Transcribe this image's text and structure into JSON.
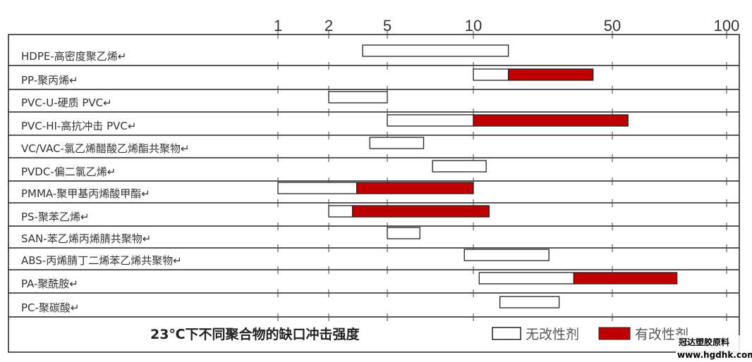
{
  "chart_data": {
    "type": "bar",
    "orientation": "horizontal",
    "stacked_ranges": true,
    "title": "23℃下不同聚合物的缺口冲击强度",
    "x_scale": "log (non-uniform spacing)",
    "x_ticks": [
      "1",
      "2",
      "5",
      "10",
      "50",
      "100"
    ],
    "xlim": [
      1,
      100
    ],
    "grid": "tick marks at each row boundary",
    "legend_position": "bottom",
    "legend": [
      {
        "name": "无改性剂",
        "color": "#ffffff"
      },
      {
        "name": "有改性剂",
        "color": "#c00000"
      }
    ],
    "categories": [
      "HDPE-高密度聚乙烯↵",
      "PP-聚丙烯↵",
      "PVC-U-硬质 PVC↵",
      "PVC-HI-高抗冲击 PVC↵",
      "VC/VAC-氯乙烯醋酸乙烯酯共聚物↵",
      "PVDC-偏二氯乙烯↵",
      "PMMA-聚甲基丙烯酸甲酯↵",
      "PS-聚苯乙烯↵",
      "SAN-苯乙烯丙烯腈共聚物↵",
      "ABS-丙烯腈丁二烯苯乙烯共聚物↵",
      "PA-聚酰胺↵",
      "PC-聚碳酸↵"
    ],
    "series": [
      {
        "name": "无改性剂",
        "ranges": [
          [
            3.4,
            15
          ],
          [
            10,
            15
          ],
          [
            2,
            5
          ],
          [
            5,
            10
          ],
          [
            3.8,
            6.7
          ],
          [
            7.2,
            11.6
          ],
          [
            1,
            3.1
          ],
          [
            2,
            2.9
          ],
          [
            5,
            6.5
          ],
          [
            9.3,
            24
          ],
          [
            10.7,
            32
          ],
          [
            13.6,
            27
          ]
        ]
      },
      {
        "name": "有改性剂",
        "ranges": [
          null,
          [
            15,
            40
          ],
          null,
          [
            10,
            55
          ],
          null,
          null,
          [
            3.1,
            10
          ],
          [
            2.9,
            12
          ],
          null,
          null,
          [
            32,
            74
          ],
          null
        ]
      }
    ]
  },
  "watermark": {
    "line1": "冠达塑胶原料",
    "line2": "www.hgdhk.com"
  }
}
